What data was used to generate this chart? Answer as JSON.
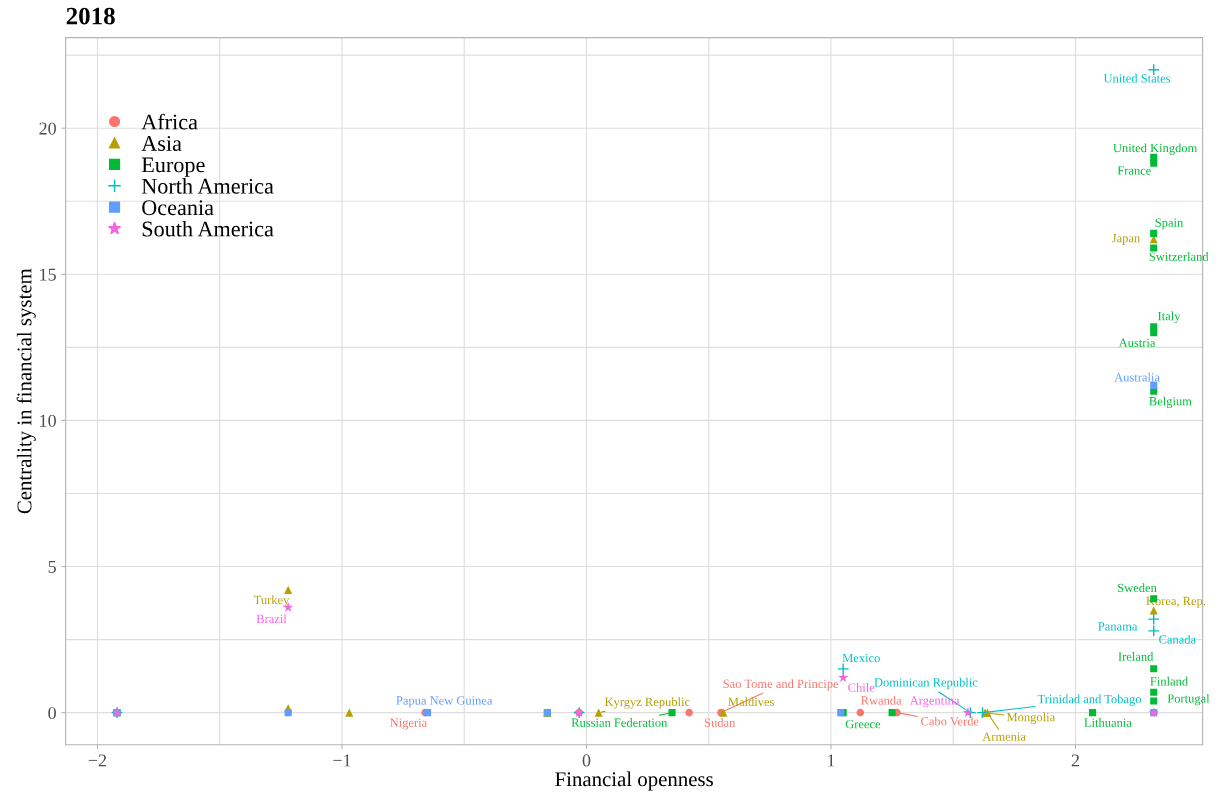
{
  "chart_data": {
    "type": "scatter",
    "title": "2018",
    "xlabel": "Financial openness",
    "ylabel": "Centrality in financial system",
    "xlim": [
      -2.13,
      2.52
    ],
    "ylim": [
      -1.1,
      23.1
    ],
    "xticks": [
      {
        "value": -2,
        "label": "−2"
      },
      {
        "value": -1.5,
        "label": null
      },
      {
        "value": -1,
        "label": "−1"
      },
      {
        "value": -0.5,
        "label": null
      },
      0,
      {
        "value": 0.5,
        "label": null
      },
      1,
      {
        "value": 1.5,
        "label": null
      },
      2
    ],
    "yticks": [
      0,
      {
        "value": 2.5,
        "label": null
      },
      5,
      {
        "value": 7.5,
        "label": null
      },
      10,
      {
        "value": 12.5,
        "label": null
      },
      15,
      {
        "value": 17.5,
        "label": null
      },
      20,
      {
        "value": 22.5,
        "label": null
      }
    ],
    "grid": true,
    "legend": "top left",
    "series": [
      {
        "name": "Africa",
        "color": "#f8766d",
        "marker": "circle",
        "x": [
          -1.92,
          -0.03,
          -0.66,
          0.42,
          0.55,
          1.12,
          1.27,
          2.32
        ],
        "values": [
          0,
          0,
          0,
          0,
          0,
          0,
          0,
          0
        ]
      },
      {
        "name": "Asia",
        "color": "#b79f00",
        "marker": "triangle",
        "x": [
          -1.22,
          -1.22,
          -0.97,
          -0.16,
          0.05,
          0.56,
          1.63,
          1.64,
          2.32,
          2.32
        ],
        "values": [
          4.2,
          0.15,
          0,
          0,
          0,
          0,
          0,
          0,
          16.2,
          3.5
        ]
      },
      {
        "name": "Europe",
        "color": "#00ba38",
        "marker": "square",
        "x": [
          -1.92,
          -0.16,
          0.35,
          1.05,
          1.25,
          2.07,
          2.32,
          2.32,
          2.32,
          2.32,
          2.32,
          2.32,
          2.32,
          2.32,
          2.32,
          2.32,
          2.32
        ],
        "values": [
          0,
          0,
          0,
          0,
          0,
          0,
          19.0,
          18.8,
          16.4,
          15.9,
          13.2,
          13.0,
          11.0,
          3.9,
          1.5,
          0.7,
          0.4
        ]
      },
      {
        "name": "North America",
        "color": "#00bfc4",
        "marker": "cross",
        "x": [
          -1.92,
          -0.03,
          1.05,
          1.57,
          1.62,
          2.32,
          2.32,
          2.32
        ],
        "values": [
          0,
          0,
          1.5,
          0,
          0,
          22.0,
          3.2,
          2.8
        ]
      },
      {
        "name": "Oceania",
        "color": "#619cff",
        "marker": "square",
        "x": [
          -1.92,
          -1.22,
          -0.65,
          -0.16,
          1.04,
          2.32,
          2.32
        ],
        "values": [
          0,
          0,
          0,
          0,
          0,
          0,
          11.2
        ]
      },
      {
        "name": "South America",
        "color": "#f564e3",
        "marker": "star",
        "x": [
          -1.92,
          -1.22,
          -0.03,
          1.05,
          1.56,
          2.32
        ],
        "values": [
          0,
          3.6,
          0,
          1.2,
          0,
          0
        ]
      }
    ],
    "annotations": [
      {
        "text": "United States",
        "x": 2.32,
        "y": 22.0
      },
      {
        "text": "United Kingdom",
        "x": 2.32,
        "y": 19.0
      },
      {
        "text": "France",
        "x": 2.32,
        "y": 18.8
      },
      {
        "text": "Spain",
        "x": 2.32,
        "y": 16.4
      },
      {
        "text": "Japan",
        "x": 2.32,
        "y": 16.2
      },
      {
        "text": "Switzerland",
        "x": 2.32,
        "y": 15.9
      },
      {
        "text": "Italy",
        "x": 2.32,
        "y": 13.2
      },
      {
        "text": "Austria",
        "x": 2.32,
        "y": 13.0
      },
      {
        "text": "Australia",
        "x": 2.32,
        "y": 11.2
      },
      {
        "text": "Belgium",
        "x": 2.32,
        "y": 11.0
      },
      {
        "text": "Sweden",
        "x": 2.32,
        "y": 3.9
      },
      {
        "text": "Korea, Rep.",
        "x": 2.32,
        "y": 3.5
      },
      {
        "text": "Panama",
        "x": 2.32,
        "y": 3.2
      },
      {
        "text": "Canada",
        "x": 2.32,
        "y": 2.8
      },
      {
        "text": "Ireland",
        "x": 2.32,
        "y": 1.5
      },
      {
        "text": "Finland",
        "x": 2.32,
        "y": 0.7
      },
      {
        "text": "Portugal",
        "x": 2.32,
        "y": 0.4
      },
      {
        "text": "Lithuania",
        "x": 2.07,
        "y": 0
      },
      {
        "text": "Turkey",
        "x": -1.22,
        "y": 4.2
      },
      {
        "text": "Brazil",
        "x": -1.22,
        "y": 3.6
      },
      {
        "text": "Papua New Guinea",
        "x": -0.65,
        "y": 0
      },
      {
        "text": "Nigeria",
        "x": -0.66,
        "y": 0
      },
      {
        "text": "Kyrgyz Republic",
        "x": 0.05,
        "y": 0
      },
      {
        "text": "Russian Federation",
        "x": 0.35,
        "y": 0
      },
      {
        "text": "Sudan",
        "x": 0.42,
        "y": 0
      },
      {
        "text": "Sao Tome and Principe",
        "x": 0.55,
        "y": 0
      },
      {
        "text": "Maldives",
        "x": 0.56,
        "y": 0
      },
      {
        "text": "Mexico",
        "x": 1.05,
        "y": 1.5
      },
      {
        "text": "Chile",
        "x": 1.05,
        "y": 1.2
      },
      {
        "text": "Greece",
        "x": 1.25,
        "y": 0
      },
      {
        "text": "Rwanda",
        "x": 1.12,
        "y": 0
      },
      {
        "text": "Cabo Verde",
        "x": 1.27,
        "y": 0
      },
      {
        "text": "Dominican Republic",
        "x": 1.57,
        "y": 0
      },
      {
        "text": "Argentina",
        "x": 1.56,
        "y": 0
      },
      {
        "text": "Trinidad and Tobago",
        "x": 1.62,
        "y": 0
      },
      {
        "text": "Mongolia",
        "x": 1.63,
        "y": 0
      },
      {
        "text": "Armenia",
        "x": 1.64,
        "y": 0
      }
    ]
  }
}
